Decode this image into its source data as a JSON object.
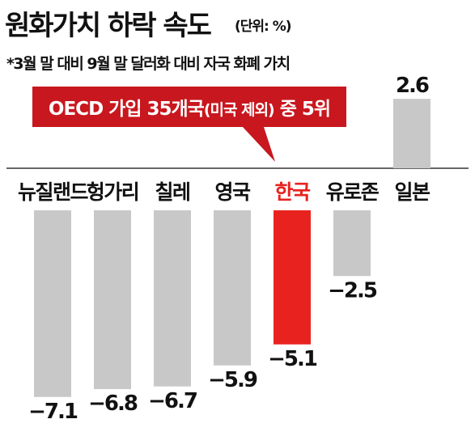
{
  "title": "원화가치 하락 속도",
  "unit": "(단위: %)",
  "note": "*3월 말 대비 9월 말 달러화 대비 자국 화폐 가치",
  "callout": {
    "lead": "OECD 가입 35개국",
    "paren": "(미국 제외)",
    "tail": " 중 5위"
  },
  "colors": {
    "bar": "#c8c8c8",
    "highlight": "#e8231f",
    "callout_bg": "#c8171e"
  },
  "chart_data": {
    "type": "bar",
    "categories": [
      "뉴질랜드",
      "헝가리",
      "칠레",
      "영국",
      "한국",
      "유로존",
      "일본"
    ],
    "values": [
      -7.1,
      -6.8,
      -6.7,
      -5.9,
      -5.1,
      -2.5,
      2.6
    ],
    "value_labels": [
      "−7.1",
      "−6.8",
      "−6.7",
      "−5.9",
      "−5.1",
      "−2.5",
      "2.6"
    ],
    "highlight_category": "한국"
  }
}
